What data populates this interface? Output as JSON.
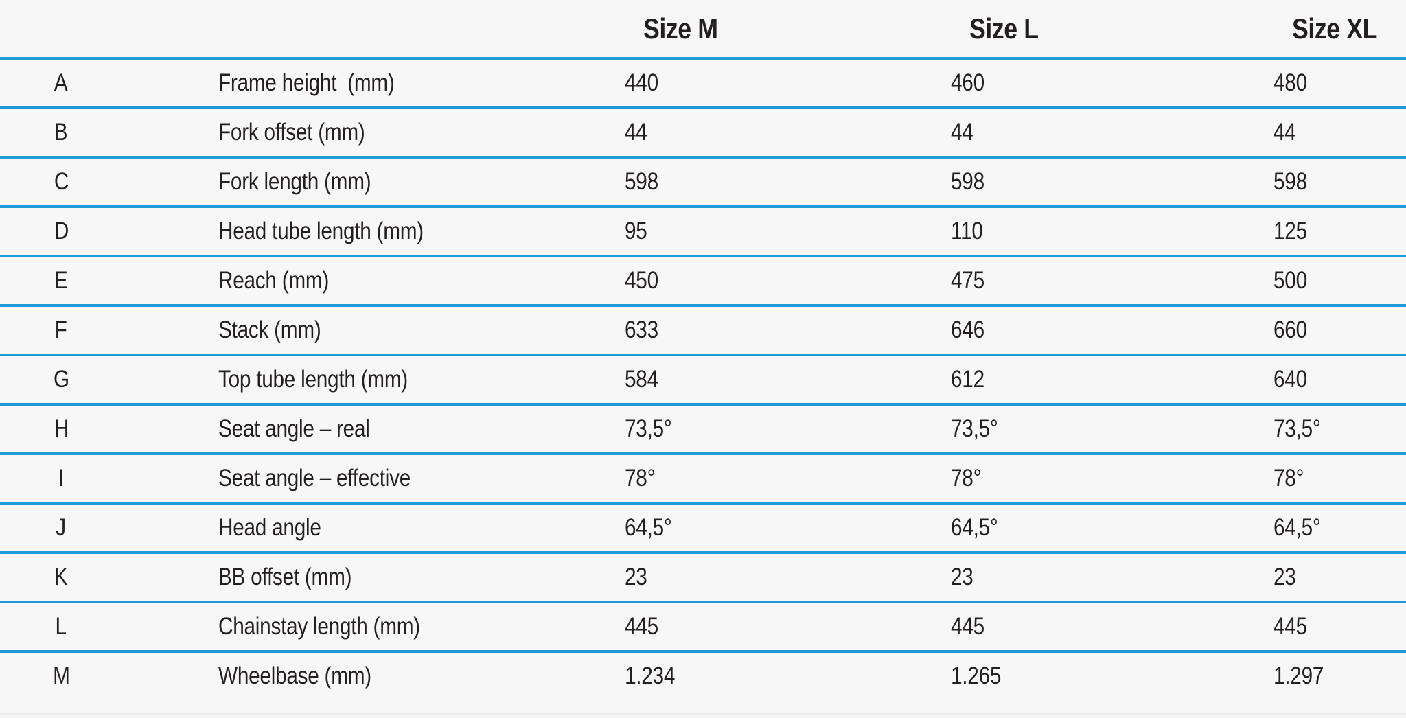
{
  "page": {
    "background": "#f8f7f7",
    "line_color": "#1e9ad6",
    "text_color": "#231f20"
  },
  "table": {
    "column_headers": [
      {
        "label": "Size M"
      },
      {
        "label": "Size L"
      },
      {
        "label": "Size XL"
      }
    ],
    "rows": [
      {
        "letter": "A",
        "label": "Frame height  (mm)",
        "values": [
          "440",
          "460",
          "480"
        ]
      },
      {
        "letter": "B",
        "label": "Fork offset (mm)",
        "values": [
          "44",
          "44",
          "44"
        ]
      },
      {
        "letter": "C",
        "label": "Fork length (mm)",
        "values": [
          "598",
          "598",
          "598"
        ]
      },
      {
        "letter": "D",
        "label": "Head tube length (mm)",
        "values": [
          "95",
          "110",
          "125"
        ]
      },
      {
        "letter": "E",
        "label": "Reach (mm)",
        "values": [
          "450",
          "475",
          "500"
        ]
      },
      {
        "letter": "F",
        "label": "Stack (mm)",
        "values": [
          "633",
          "646",
          "660"
        ]
      },
      {
        "letter": "G",
        "label": "Top tube length (mm)",
        "values": [
          "584",
          "612",
          "640"
        ]
      },
      {
        "letter": "H",
        "label": "Seat angle – real",
        "values": [
          "73,5°",
          "73,5°",
          "73,5°"
        ]
      },
      {
        "letter": "I",
        "label": "Seat angle – effective",
        "values": [
          "78°",
          "78°",
          "78°"
        ]
      },
      {
        "letter": "J",
        "label": "Head angle",
        "values": [
          "64,5°",
          "64,5°",
          "64,5°"
        ]
      },
      {
        "letter": "K",
        "label": "BB offset (mm)",
        "values": [
          "23",
          "23",
          "23"
        ]
      },
      {
        "letter": "L",
        "label": "Chainstay length (mm)",
        "values": [
          "445",
          "445",
          "445"
        ]
      },
      {
        "letter": "M",
        "label": "Wheelbase (mm)",
        "values": [
          "1.234",
          "1.265",
          "1.297"
        ]
      }
    ]
  },
  "chart_data": {
    "type": "table",
    "title": "",
    "columns": [
      "",
      "",
      "Size M",
      "Size L",
      "Size XL"
    ],
    "rows": [
      [
        "A",
        "Frame height  (mm)",
        "440",
        "460",
        "480"
      ],
      [
        "B",
        "Fork offset (mm)",
        "44",
        "44",
        "44"
      ],
      [
        "C",
        "Fork length (mm)",
        "598",
        "598",
        "598"
      ],
      [
        "D",
        "Head tube length (mm)",
        "95",
        "110",
        "125"
      ],
      [
        "E",
        "Reach (mm)",
        "450",
        "475",
        "500"
      ],
      [
        "F",
        "Stack (mm)",
        "633",
        "646",
        "660"
      ],
      [
        "G",
        "Top tube length (mm)",
        "584",
        "612",
        "640"
      ],
      [
        "H",
        "Seat angle – real",
        "73,5°",
        "73,5°",
        "73,5°"
      ],
      [
        "I",
        "Seat angle – effective",
        "78°",
        "78°",
        "78°"
      ],
      [
        "J",
        "Head angle",
        "64,5°",
        "64,5°",
        "64,5°"
      ],
      [
        "K",
        "BB offset (mm)",
        "23",
        "23",
        "23"
      ],
      [
        "L",
        "Chainstay length (mm)",
        "445",
        "445",
        "445"
      ],
      [
        "M",
        "Wheelbase (mm)",
        "1.234",
        "1.265",
        "1.297"
      ]
    ]
  }
}
